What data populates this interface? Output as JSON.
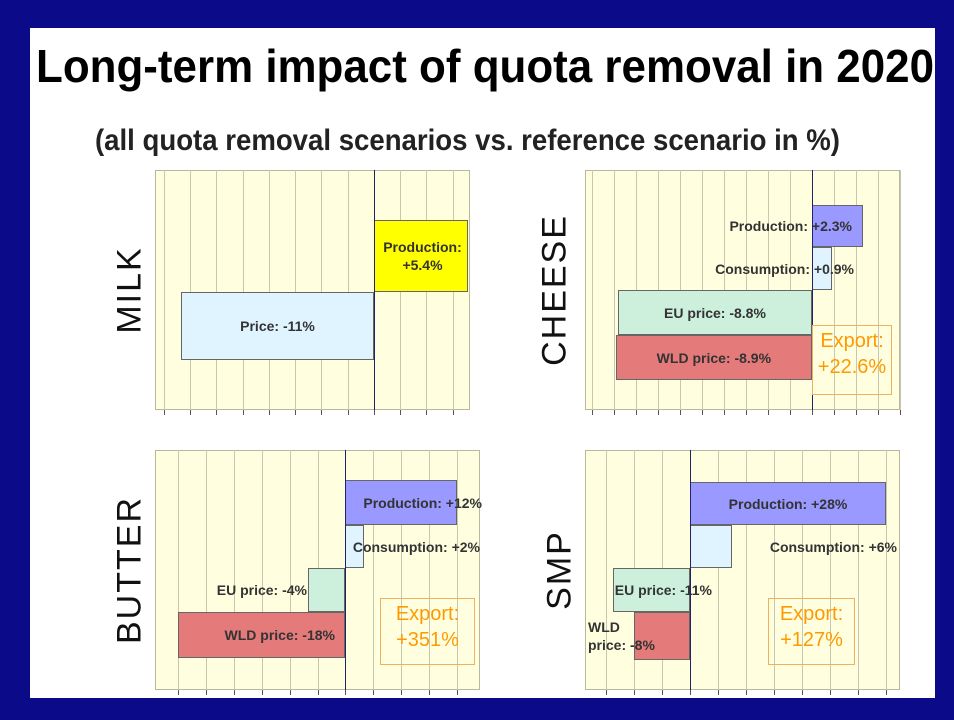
{
  "title": "Long-term impact of quota removal in 2020",
  "subtitle": "(all quota removal scenarios vs. reference scenario in %)",
  "chart_data": [
    {
      "type": "bar",
      "orientation": "horizontal",
      "title": "MILK",
      "values": [
        5.4,
        -11
      ],
      "value_labels": [
        "Production: +5.4%",
        "Price: -11%"
      ],
      "colors": [
        "#ffff00",
        "#e0f4ff"
      ],
      "xlim": [
        -12.5,
        5.5
      ],
      "xticks": [
        -12,
        -10.5,
        -9,
        -7.5,
        -6,
        -4.5,
        -3,
        -1.5,
        0,
        1.5,
        3,
        4.5
      ],
      "grid": true
    },
    {
      "type": "bar",
      "orientation": "horizontal",
      "title": "CHEESE",
      "values": [
        2.3,
        0.9,
        -8.8,
        -8.9
      ],
      "value_labels": [
        "Production: +2.3%",
        "Consumption: +0.9%",
        "EU price: -8.8%",
        "WLD price: -8.9%"
      ],
      "colors": [
        "#9999ff",
        "#e0f4ff",
        "#ccf0dc",
        "#e57a7a"
      ],
      "annotation": [
        "Export:",
        "+22.6%"
      ],
      "xlim": [
        -10.3,
        4
      ],
      "xticks": [
        -10,
        -9,
        -8,
        -7,
        -6,
        -5,
        -4,
        -3,
        -2,
        -1,
        0,
        1,
        2,
        3,
        4
      ],
      "grid": true
    },
    {
      "type": "bar",
      "orientation": "horizontal",
      "title": "BUTTER",
      "values": [
        12,
        2,
        -4,
        -18
      ],
      "value_labels": [
        "Production: +12%",
        "Consumption: +2%",
        "EU price: -4%",
        "WLD price: -18%"
      ],
      "colors": [
        "#9999ff",
        "#e0f4ff",
        "#ccf0dc",
        "#e57a7a"
      ],
      "annotation": [
        "Export:",
        "+351%"
      ],
      "xlim": [
        -20.5,
        14.5
      ],
      "xticks": [
        -18,
        -15,
        -12,
        -9,
        -6,
        -3,
        0,
        3,
        6,
        9,
        12
      ],
      "grid": true
    },
    {
      "type": "bar",
      "orientation": "horizontal",
      "title": "SMP",
      "values": [
        28,
        6,
        -11,
        -8
      ],
      "value_labels": [
        "Production: +28%",
        "Consumption: +6%",
        "EU price: -11%",
        "WLD price: -8%"
      ],
      "colors": [
        "#9999ff",
        "#e0f4ff",
        "#ccf0dc",
        "#e57a7a"
      ],
      "annotation": [
        "Export:",
        "+127%"
      ],
      "xlim": [
        -15,
        30
      ],
      "xticks": [
        -12,
        -8,
        -4,
        0,
        4,
        8,
        12,
        16,
        20,
        24,
        28
      ],
      "grid": true
    }
  ]
}
